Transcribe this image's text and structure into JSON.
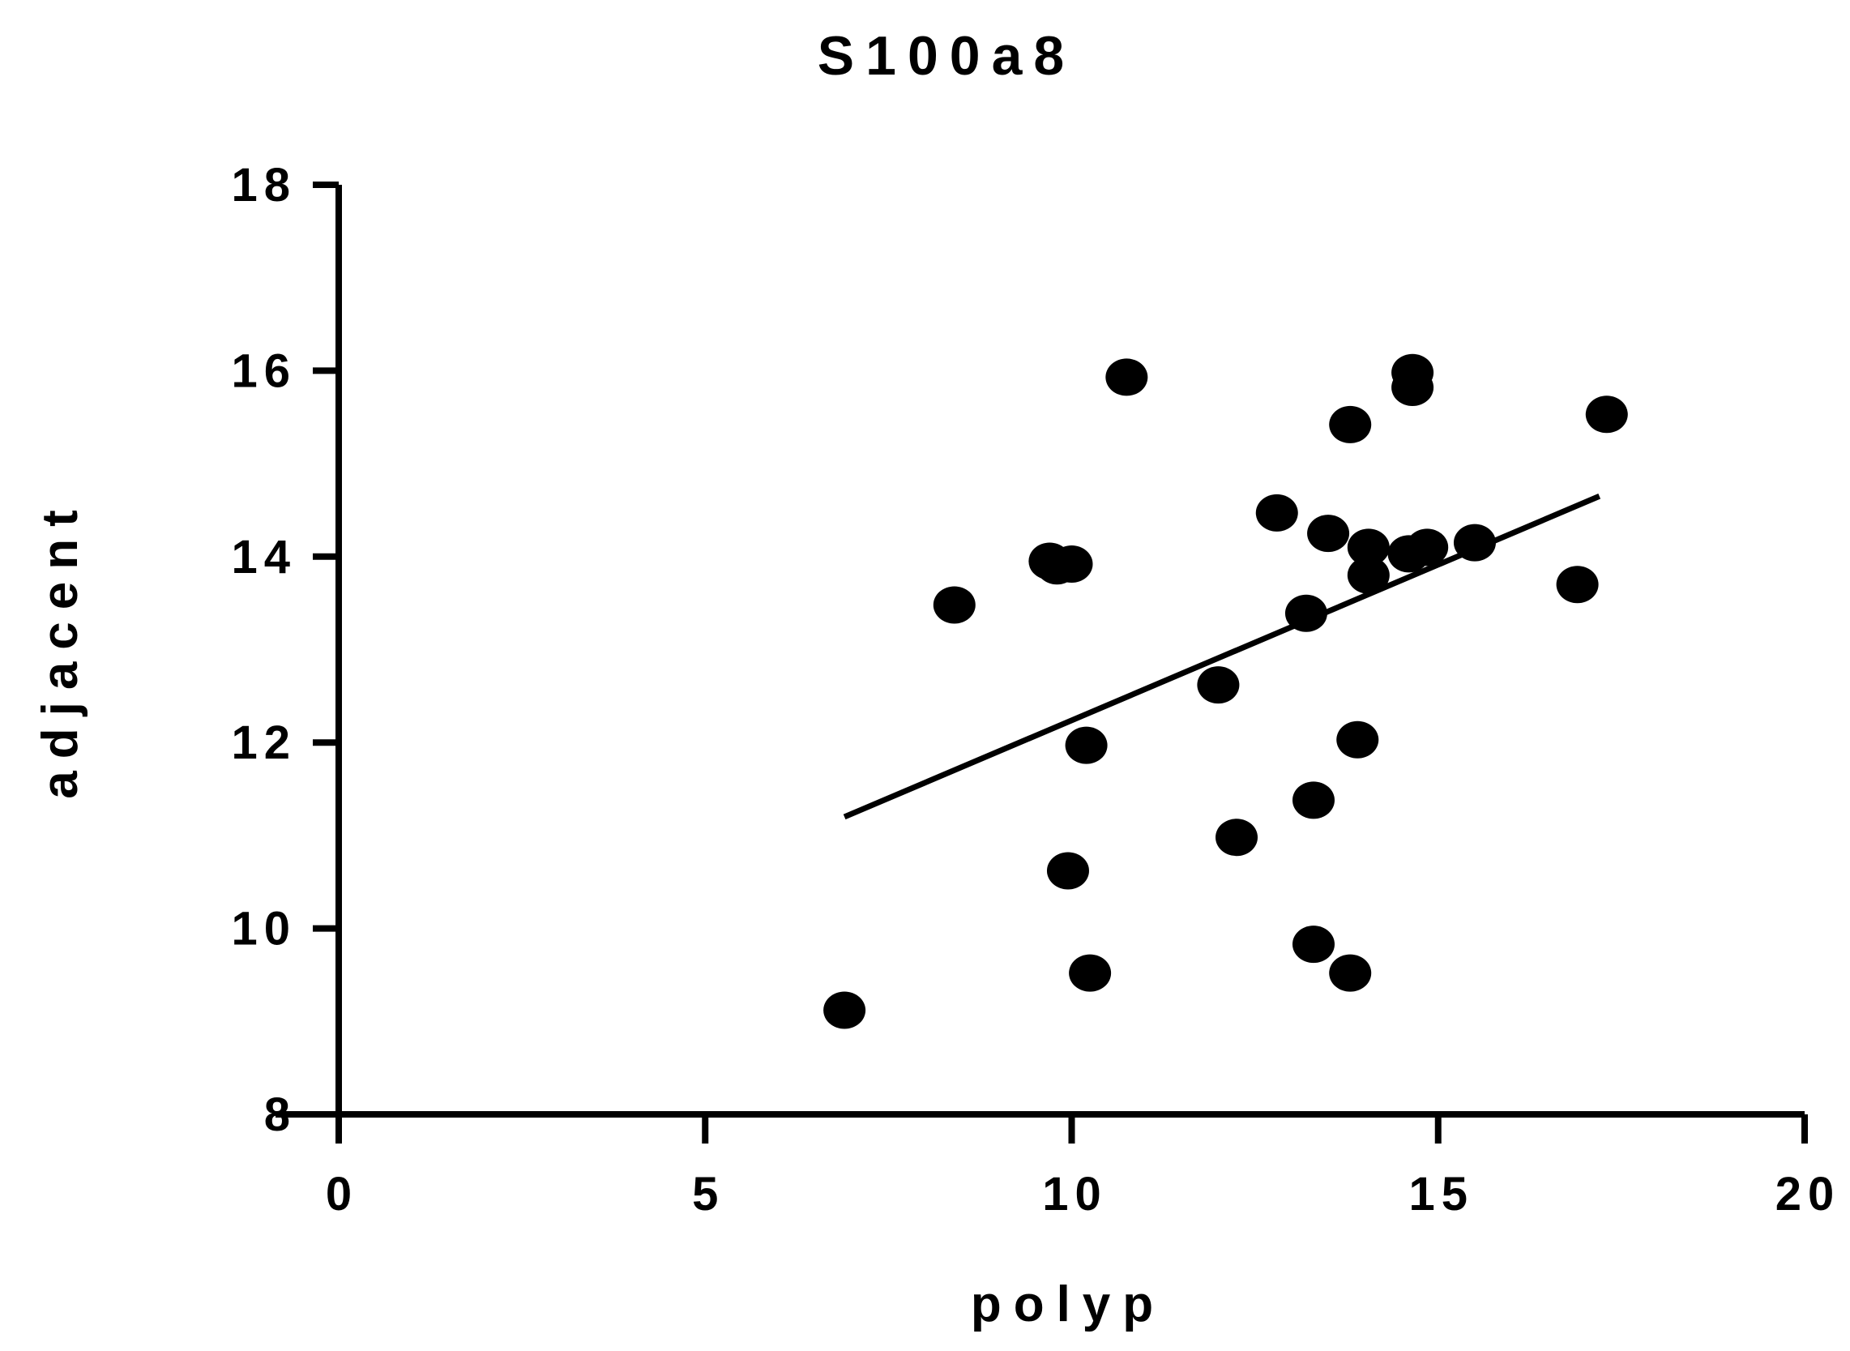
{
  "chart_data": {
    "type": "scatter",
    "title": "S100a8",
    "xlabel": "polyp",
    "ylabel": "adjacent",
    "xlim": [
      0,
      20
    ],
    "ylim": [
      8,
      18
    ],
    "x_ticks": [
      0,
      5,
      10,
      15,
      20
    ],
    "y_ticks": [
      8,
      10,
      12,
      14,
      16,
      18
    ],
    "x_tick_labels": [
      "0",
      "5",
      "10",
      "15",
      "20"
    ],
    "y_tick_labels": [
      "8",
      "10",
      "12",
      "14",
      "16",
      "18"
    ],
    "grid": false,
    "legend": "none",
    "colors": {
      "points": "#000000",
      "line": "#000000",
      "axes": "#000000"
    },
    "series": [
      {
        "x": [
          6.9,
          8.4,
          9.7,
          9.8,
          10.0,
          9.95,
          10.2,
          10.25,
          10.75,
          12.0,
          12.25,
          12.8,
          13.2,
          13.3,
          13.3,
          13.5,
          13.8,
          13.8,
          13.9,
          14.05,
          14.05,
          14.6,
          14.65,
          14.65,
          14.85,
          15.5,
          16.9,
          17.3
        ],
        "y": [
          9.12,
          13.48,
          13.95,
          13.9,
          13.92,
          10.62,
          11.97,
          9.52,
          15.93,
          12.62,
          10.98,
          14.47,
          13.39,
          11.38,
          9.83,
          14.25,
          15.42,
          9.52,
          12.03,
          14.1,
          13.8,
          14.03,
          15.98,
          15.82,
          14.1,
          14.15,
          13.7,
          15.53
        ]
      }
    ],
    "trend_line": {
      "x": [
        6.9,
        17.2
      ],
      "y": [
        11.2,
        14.65
      ]
    }
  }
}
